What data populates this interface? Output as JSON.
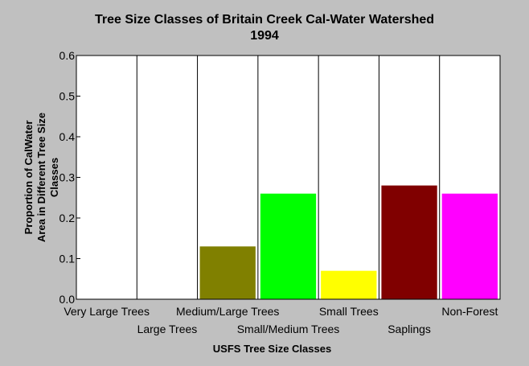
{
  "chart_data": {
    "type": "bar",
    "title": [
      "Tree Size Classes of Britain Creek Cal-Water Watershed",
      "1994"
    ],
    "xlabel": "USFS Tree Size Classes",
    "ylabel": [
      "Proportion of CalWater",
      "Area in Different Tree Size",
      "Classes"
    ],
    "categories": [
      "Very Large Trees",
      "Large Trees",
      "Medium/Large Trees",
      "Small/Medium Trees",
      "Small Trees",
      "Saplings",
      "Non-Forest"
    ],
    "values": [
      0,
      0,
      0.13,
      0.26,
      0.07,
      0.28,
      0.26
    ],
    "colors": [
      "#000080",
      "#0000ff",
      "#808000",
      "#00ff00",
      "#ffff00",
      "#800000",
      "#ff00ff"
    ],
    "ylim": [
      0,
      0.6
    ],
    "yticks": [
      "0.0",
      "0.1",
      "0.2",
      "0.3",
      "0.4",
      "0.5",
      "0.6"
    ],
    "grid": "vertical"
  }
}
